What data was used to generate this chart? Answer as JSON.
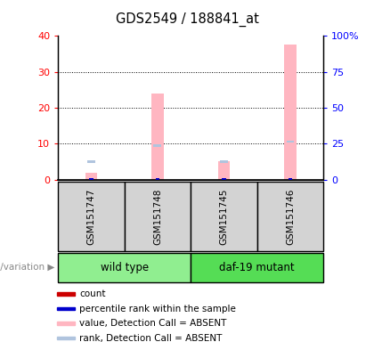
{
  "title": "GDS2549 / 188841_at",
  "samples": [
    "GSM151747",
    "GSM151748",
    "GSM151745",
    "GSM151746"
  ],
  "bar_value_absent": [
    2.0,
    24.0,
    5.2,
    37.5
  ],
  "bar_rank_absent": [
    5.0,
    9.5,
    5.0,
    10.5
  ],
  "ylim_left": [
    0,
    40
  ],
  "ylim_right": [
    0,
    100
  ],
  "yticks_left": [
    0,
    10,
    20,
    30,
    40
  ],
  "yticks_right": [
    0,
    25,
    50,
    75,
    100
  ],
  "ytick_labels_right": [
    "0",
    "25",
    "50",
    "75",
    "100%"
  ],
  "color_count": "#cc0000",
  "color_percentile": "#0000cc",
  "color_value_absent": "#ffb6c1",
  "color_rank_absent": "#b0c4de",
  "bar_width": 0.18,
  "rank_bar_width": 0.12,
  "legend_items": [
    {
      "label": "count",
      "color": "#cc0000"
    },
    {
      "label": "percentile rank within the sample",
      "color": "#0000cc"
    },
    {
      "label": "value, Detection Call = ABSENT",
      "color": "#ffb6c1"
    },
    {
      "label": "rank, Detection Call = ABSENT",
      "color": "#b0c4de"
    }
  ],
  "group_label_text": "genotype/variation",
  "group_info": [
    {
      "label": "wild type",
      "start": 0,
      "end": 2,
      "color": "#90EE90"
    },
    {
      "label": "daf-19 mutant",
      "start": 2,
      "end": 4,
      "color": "#55DD55"
    }
  ]
}
